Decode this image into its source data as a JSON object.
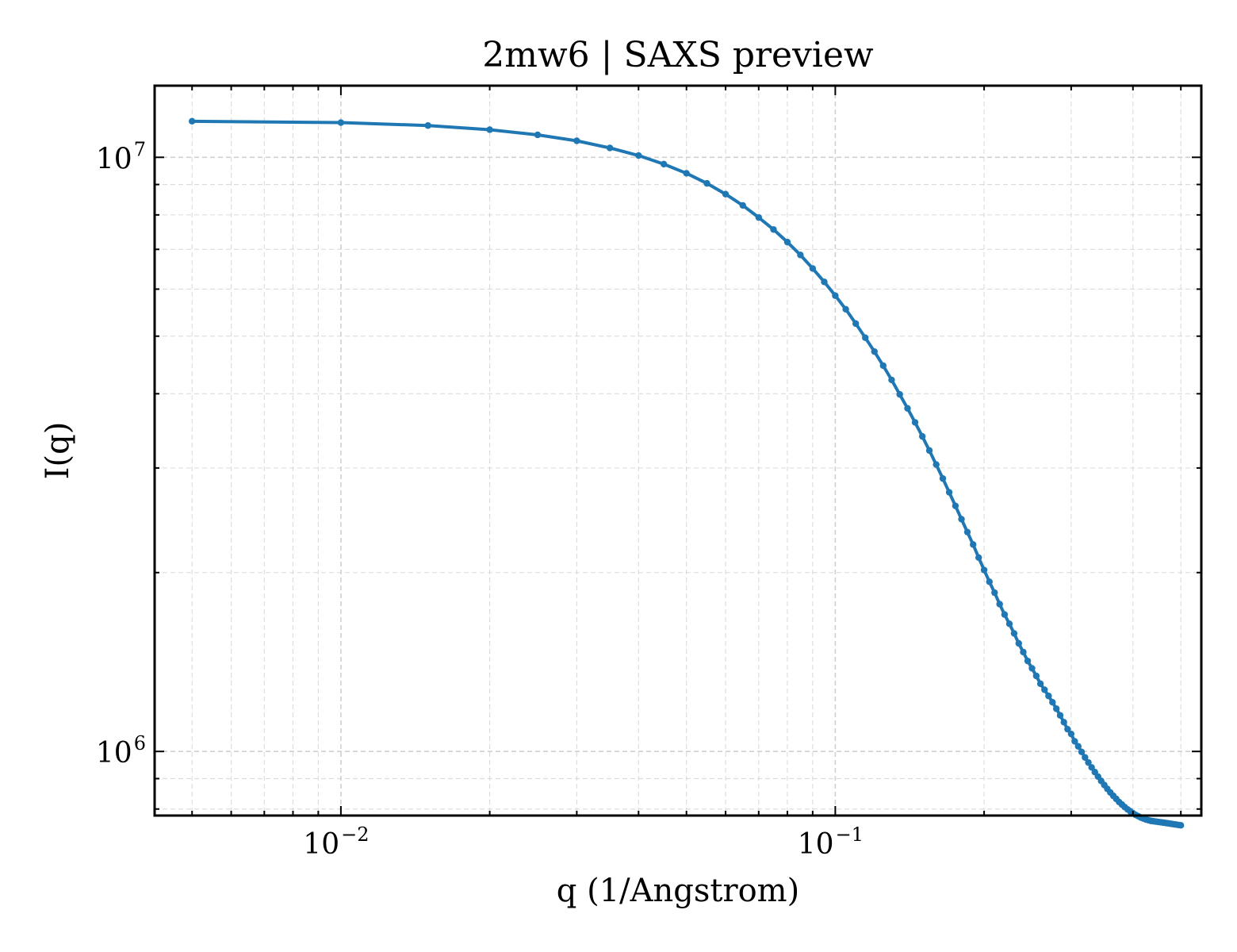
{
  "chart_data": {
    "type": "line",
    "title": "2mw6 | SAXS preview",
    "xlabel": "q (1/Angstrom)",
    "ylabel": "I(q)",
    "xscale": "log",
    "yscale": "log",
    "xlim": [
      0.0042,
      0.55
    ],
    "ylim": [
      780000,
      13200000
    ],
    "grid": true,
    "line_color": "#1f77b4",
    "x_ticks": [
      {
        "value": 0.01,
        "base": "10",
        "exp": "−2"
      },
      {
        "value": 0.1,
        "base": "10",
        "exp": "−1"
      }
    ],
    "y_ticks": [
      {
        "value": 1000000,
        "base": "10",
        "exp": "6"
      },
      {
        "value": 10000000,
        "base": "10",
        "exp": "7"
      }
    ],
    "series": [
      {
        "x": [
          0.005,
          0.01,
          0.015,
          0.02,
          0.025,
          0.03,
          0.035,
          0.04,
          0.045,
          0.05,
          0.055,
          0.06,
          0.065,
          0.07,
          0.075,
          0.08,
          0.085,
          0.09,
          0.095,
          0.1,
          0.105,
          0.11,
          0.115,
          0.12,
          0.125,
          0.13,
          0.135,
          0.14,
          0.145,
          0.15,
          0.155,
          0.16,
          0.165,
          0.17,
          0.175,
          0.18,
          0.185,
          0.19,
          0.195,
          0.2,
          0.205,
          0.21,
          0.215,
          0.22,
          0.225,
          0.23,
          0.235,
          0.24,
          0.245,
          0.25,
          0.255,
          0.26,
          0.265,
          0.27,
          0.275,
          0.28,
          0.285,
          0.29,
          0.295,
          0.3,
          0.305,
          0.31,
          0.315,
          0.32,
          0.325,
          0.33,
          0.335,
          0.34,
          0.345,
          0.35,
          0.355,
          0.36,
          0.365,
          0.37,
          0.375,
          0.38,
          0.385,
          0.39,
          0.395,
          0.4,
          0.405,
          0.41,
          0.415,
          0.42,
          0.425,
          0.43,
          0.435,
          0.44,
          0.445,
          0.45,
          0.455,
          0.46,
          0.465,
          0.47,
          0.475,
          0.48,
          0.485,
          0.49,
          0.495,
          0.5
        ],
        "y": [
          11500000,
          11440000,
          11310000,
          11130000,
          10910000,
          10660000,
          10370000,
          10070000,
          9740000,
          9400000,
          9040000,
          8670000,
          8300000,
          7920000,
          7560000,
          7200000,
          6850000,
          6500000,
          6170000,
          5850000,
          5550000,
          5250000,
          4970000,
          4710000,
          4460000,
          4220000,
          3990000,
          3780000,
          3580000,
          3390000,
          3210000,
          3040000,
          2880000,
          2730000,
          2590000,
          2460000,
          2340000,
          2230000,
          2120000,
          2020000,
          1930000,
          1850000,
          1770000,
          1700000,
          1640000,
          1580000,
          1520000,
          1470000,
          1420000,
          1380000,
          1340000,
          1300000,
          1270000,
          1240000,
          1210000,
          1180000,
          1150000,
          1120000,
          1090000,
          1070000,
          1040000,
          1020000,
          998000,
          977000,
          958000,
          940000,
          923000,
          907000,
          892000,
          878000,
          865000,
          853000,
          842000,
          832000,
          822000,
          814000,
          806000,
          799000,
          793000,
          787000,
          782000,
          778000,
          774000,
          771000,
          768000,
          766000,
          764000,
          763000,
          762000,
          761000,
          760000,
          759000,
          758000,
          757000,
          756000,
          755000,
          754000,
          753000,
          752000,
          751000
        ]
      }
    ]
  }
}
